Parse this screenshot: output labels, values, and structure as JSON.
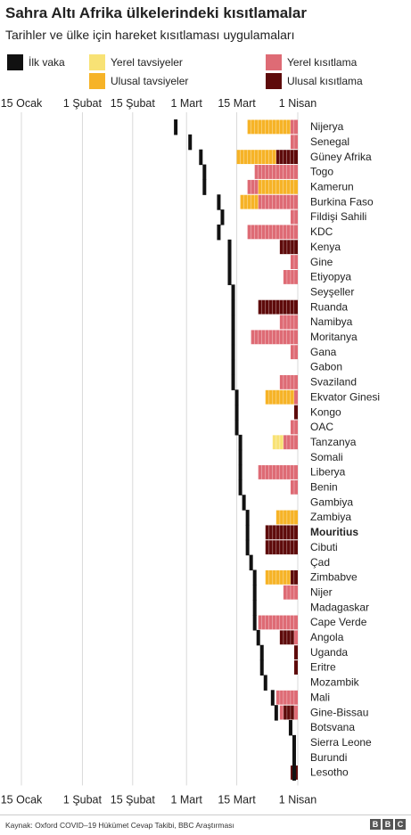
{
  "title": "Sahra Altı Afrika ülkelerindeki kısıtlamalar",
  "subtitle": "Tarihler ve ülke için hareket kısıtlaması uygulamaları",
  "legend": {
    "first_case": "İlk vaka",
    "local_advisory": "Yerel tavsiyeler",
    "national_advisory": "Ulusal tavsiyeler",
    "local_restriction": "Yerel kısıtlama",
    "national_restriction": "Ulusal kısıtlama"
  },
  "colors": {
    "first_case": "#111111",
    "local_advisory": "#f8e275",
    "national_advisory": "#f6b327",
    "local_restriction": "#de6b75",
    "national_restriction": "#5e0b0b",
    "gridline": "#d9d9d9"
  },
  "source": "Kaynak: Oxford COVID–19 Hükümet Cevap Takibi, BBC Araştırması",
  "logo": {
    "letters": [
      "B",
      "B",
      "C"
    ]
  },
  "chart_data": {
    "type": "timeline",
    "x_unit": "date",
    "x_range": [
      "2020-01-15",
      "2020-04-07"
    ],
    "ticks": [
      {
        "date": "2020-01-15",
        "label": "15 Ocak"
      },
      {
        "date": "2020-02-01",
        "label": "1 Şubat"
      },
      {
        "date": "2020-02-15",
        "label": "15 Şubat"
      },
      {
        "date": "2020-03-01",
        "label": "1 Mart"
      },
      {
        "date": "2020-03-15",
        "label": "15 Mart"
      },
      {
        "date": "2020-04-01",
        "label": "1 Nisan"
      }
    ],
    "grid": true,
    "countries": [
      {
        "name": "Nijerya",
        "first_case": "2020-02-27",
        "segments": [
          {
            "start": "2020-03-18",
            "end": "2020-03-30",
            "type": "national_advisory"
          },
          {
            "start": "2020-03-30",
            "end": "2020-04-01",
            "type": "local_restriction"
          }
        ]
      },
      {
        "name": "Senegal",
        "first_case": "2020-03-02",
        "segments": [
          {
            "start": "2020-03-30",
            "end": "2020-04-01",
            "type": "local_restriction"
          }
        ]
      },
      {
        "name": "Güney Afrika",
        "first_case": "2020-03-05",
        "segments": [
          {
            "start": "2020-03-15",
            "end": "2020-03-26",
            "type": "national_advisory"
          },
          {
            "start": "2020-03-26",
            "end": "2020-04-01",
            "type": "national_restriction"
          }
        ]
      },
      {
        "name": "Togo",
        "first_case": "2020-03-06",
        "segments": [
          {
            "start": "2020-03-20",
            "end": "2020-04-01",
            "type": "local_restriction"
          }
        ]
      },
      {
        "name": "Kamerun",
        "first_case": "2020-03-06",
        "segments": [
          {
            "start": "2020-03-18",
            "end": "2020-03-21",
            "type": "local_restriction"
          },
          {
            "start": "2020-03-21",
            "end": "2020-04-01",
            "type": "national_advisory"
          }
        ]
      },
      {
        "name": "Burkina Faso",
        "first_case": "2020-03-10",
        "segments": [
          {
            "start": "2020-03-16",
            "end": "2020-03-21",
            "type": "national_advisory"
          },
          {
            "start": "2020-03-21",
            "end": "2020-04-01",
            "type": "local_restriction"
          }
        ]
      },
      {
        "name": "Fildişi Sahili",
        "first_case": "2020-03-11",
        "segments": [
          {
            "start": "2020-03-30",
            "end": "2020-04-01",
            "type": "local_restriction"
          }
        ]
      },
      {
        "name": "KDC",
        "first_case": "2020-03-10",
        "segments": [
          {
            "start": "2020-03-18",
            "end": "2020-04-01",
            "type": "local_restriction"
          }
        ]
      },
      {
        "name": "Kenya",
        "first_case": "2020-03-13",
        "segments": [
          {
            "start": "2020-03-27",
            "end": "2020-04-01",
            "type": "national_restriction"
          }
        ]
      },
      {
        "name": "Gine",
        "first_case": "2020-03-13",
        "segments": [
          {
            "start": "2020-03-30",
            "end": "2020-04-01",
            "type": "local_restriction"
          }
        ]
      },
      {
        "name": "Etiyopya",
        "first_case": "2020-03-13",
        "segments": [
          {
            "start": "2020-03-28",
            "end": "2020-04-01",
            "type": "local_restriction"
          }
        ]
      },
      {
        "name": "Seyşeller",
        "first_case": "2020-03-14",
        "segments": []
      },
      {
        "name": "Ruanda",
        "first_case": "2020-03-14",
        "segments": [
          {
            "start": "2020-03-21",
            "end": "2020-04-01",
            "type": "national_restriction"
          }
        ]
      },
      {
        "name": "Namibya",
        "first_case": "2020-03-14",
        "segments": [
          {
            "start": "2020-03-27",
            "end": "2020-04-01",
            "type": "local_restriction"
          }
        ]
      },
      {
        "name": "Moritanya",
        "first_case": "2020-03-14",
        "segments": [
          {
            "start": "2020-03-19",
            "end": "2020-04-01",
            "type": "local_restriction"
          }
        ]
      },
      {
        "name": "Gana",
        "first_case": "2020-03-14",
        "segments": [
          {
            "start": "2020-03-30",
            "end": "2020-04-01",
            "type": "local_restriction"
          }
        ]
      },
      {
        "name": "Gabon",
        "first_case": "2020-03-14",
        "segments": []
      },
      {
        "name": "Svaziland",
        "first_case": "2020-03-14",
        "segments": [
          {
            "start": "2020-03-27",
            "end": "2020-04-01",
            "type": "local_restriction"
          }
        ]
      },
      {
        "name": "Ekvator Ginesi",
        "first_case": "2020-03-15",
        "segments": [
          {
            "start": "2020-03-23",
            "end": "2020-03-31",
            "type": "national_advisory"
          },
          {
            "start": "2020-03-31",
            "end": "2020-04-01",
            "type": "local_restriction"
          }
        ]
      },
      {
        "name": "Kongo",
        "first_case": "2020-03-15",
        "segments": [
          {
            "start": "2020-03-31",
            "end": "2020-04-01",
            "type": "national_restriction"
          }
        ]
      },
      {
        "name": "OAC",
        "first_case": "2020-03-15",
        "segments": [
          {
            "start": "2020-03-30",
            "end": "2020-04-01",
            "type": "local_restriction"
          }
        ]
      },
      {
        "name": "Tanzanya",
        "first_case": "2020-03-16",
        "segments": [
          {
            "start": "2020-03-25",
            "end": "2020-03-28",
            "type": "local_advisory"
          },
          {
            "start": "2020-03-28",
            "end": "2020-04-01",
            "type": "local_restriction"
          }
        ]
      },
      {
        "name": "Somali",
        "first_case": "2020-03-16",
        "segments": []
      },
      {
        "name": "Liberya",
        "first_case": "2020-03-16",
        "segments": [
          {
            "start": "2020-03-21",
            "end": "2020-04-01",
            "type": "local_restriction"
          }
        ]
      },
      {
        "name": "Benin",
        "first_case": "2020-03-16",
        "segments": [
          {
            "start": "2020-03-30",
            "end": "2020-04-01",
            "type": "local_restriction"
          }
        ]
      },
      {
        "name": "Gambiya",
        "first_case": "2020-03-17",
        "segments": []
      },
      {
        "name": "Zambiya",
        "first_case": "2020-03-18",
        "segments": [
          {
            "start": "2020-03-26",
            "end": "2020-04-01",
            "type": "national_advisory"
          }
        ]
      },
      {
        "name": "Mouritius",
        "first_case": "2020-03-18",
        "segments": [
          {
            "start": "2020-03-23",
            "end": "2020-04-01",
            "type": "national_restriction"
          }
        ]
      },
      {
        "name": "Cibuti",
        "first_case": "2020-03-18",
        "segments": [
          {
            "start": "2020-03-23",
            "end": "2020-04-01",
            "type": "national_restriction"
          }
        ]
      },
      {
        "name": "Çad",
        "first_case": "2020-03-19",
        "segments": []
      },
      {
        "name": "Zimbabve",
        "first_case": "2020-03-20",
        "segments": [
          {
            "start": "2020-03-23",
            "end": "2020-03-30",
            "type": "national_advisory"
          },
          {
            "start": "2020-03-30",
            "end": "2020-04-01",
            "type": "national_restriction"
          }
        ]
      },
      {
        "name": "Nijer",
        "first_case": "2020-03-20",
        "segments": [
          {
            "start": "2020-03-28",
            "end": "2020-04-01",
            "type": "local_restriction"
          }
        ]
      },
      {
        "name": "Madagaskar",
        "first_case": "2020-03-20",
        "segments": []
      },
      {
        "name": "Cape Verde",
        "first_case": "2020-03-20",
        "segments": [
          {
            "start": "2020-03-21",
            "end": "2020-04-01",
            "type": "local_restriction"
          }
        ]
      },
      {
        "name": "Angola",
        "first_case": "2020-03-21",
        "segments": [
          {
            "start": "2020-03-27",
            "end": "2020-03-31",
            "type": "national_restriction"
          },
          {
            "start": "2020-03-31",
            "end": "2020-04-01",
            "type": "local_restriction"
          }
        ]
      },
      {
        "name": "Uganda",
        "first_case": "2020-03-22",
        "segments": [
          {
            "start": "2020-03-31",
            "end": "2020-04-01",
            "type": "national_restriction"
          }
        ]
      },
      {
        "name": "Eritre",
        "first_case": "2020-03-22",
        "segments": [
          {
            "start": "2020-03-31",
            "end": "2020-04-01",
            "type": "national_restriction"
          }
        ]
      },
      {
        "name": "Mozambik",
        "first_case": "2020-03-23",
        "segments": []
      },
      {
        "name": "Mali",
        "first_case": "2020-03-25",
        "segments": [
          {
            "start": "2020-03-26",
            "end": "2020-04-01",
            "type": "local_restriction"
          }
        ]
      },
      {
        "name": "Gine-Bissau",
        "first_case": "2020-03-26",
        "segments": [
          {
            "start": "2020-03-27",
            "end": "2020-03-28",
            "type": "local_restriction"
          },
          {
            "start": "2020-03-28",
            "end": "2020-03-31",
            "type": "national_restriction"
          },
          {
            "start": "2020-03-31",
            "end": "2020-04-01",
            "type": "local_restriction"
          }
        ]
      },
      {
        "name": "Botsvana",
        "first_case": "2020-03-30",
        "segments": []
      },
      {
        "name": "Sierra Leone",
        "first_case": "2020-03-31",
        "segments": []
      },
      {
        "name": "Burundi",
        "first_case": "2020-03-31",
        "segments": []
      },
      {
        "name": "Lesotho",
        "first_case": "2020-03-31",
        "segments": [
          {
            "start": "2020-03-30",
            "end": "2020-04-01",
            "type": "national_restriction"
          }
        ]
      }
    ]
  }
}
